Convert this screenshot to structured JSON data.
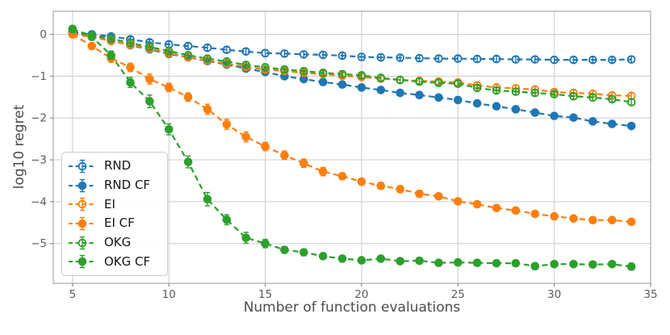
{
  "figure": {
    "background": "#ffffff",
    "grid_color": "#cccccc",
    "spine_color": "#ababab",
    "tick_color": "#8c8c8c",
    "tick_label_color": "#5c5c5c",
    "axis_label_color": "#4c4c4c",
    "legend_text_color": "#141414"
  },
  "chart_data": {
    "type": "line",
    "title": "",
    "xlabel": "Number of function evaluations",
    "ylabel": "log10 regret",
    "xlim": [
      4.0,
      35.0
    ],
    "ylim": [
      -5.95,
      0.55
    ],
    "xticks": [
      5,
      10,
      15,
      20,
      25,
      30,
      35
    ],
    "xtick_labels": [
      "5",
      "10",
      "15",
      "20",
      "25",
      "30",
      "35"
    ],
    "yticks": [
      0,
      -1,
      -2,
      -3,
      -4,
      -5
    ],
    "ytick_labels": [
      "0",
      "−1",
      "−2",
      "−3",
      "−4",
      "−5"
    ],
    "grid": true,
    "legend_position": "inside lower-left",
    "line_style": "dashed",
    "marker": "circle with error bars",
    "x": [
      5,
      6,
      7,
      8,
      9,
      10,
      11,
      12,
      13,
      14,
      15,
      16,
      17,
      18,
      19,
      20,
      21,
      22,
      23,
      24,
      25,
      26,
      27,
      28,
      29,
      30,
      31,
      32,
      33,
      34
    ],
    "series": [
      {
        "name": "RND",
        "color": "#1f77b4",
        "marker_fill": "open",
        "values": [
          0.05,
          0.0,
          -0.05,
          -0.12,
          -0.19,
          -0.24,
          -0.28,
          -0.32,
          -0.37,
          -0.41,
          -0.45,
          -0.46,
          -0.48,
          -0.49,
          -0.51,
          -0.54,
          -0.55,
          -0.56,
          -0.57,
          -0.58,
          -0.58,
          -0.59,
          -0.59,
          -0.6,
          -0.6,
          -0.61,
          -0.61,
          -0.61,
          -0.61,
          -0.6
        ],
        "yerr": [
          0.06,
          0.06,
          0.06,
          0.06,
          0.06,
          0.07,
          0.07,
          0.07,
          0.07,
          0.07,
          0.08,
          0.07,
          0.07,
          0.07,
          0.07,
          0.08,
          0.07,
          0.07,
          0.07,
          0.07,
          0.07,
          0.07,
          0.07,
          0.07,
          0.07,
          0.07,
          0.07,
          0.07,
          0.07,
          0.07
        ]
      },
      {
        "name": "RND CF",
        "color": "#1f77b4",
        "marker_fill": "filled",
        "values": [
          0.05,
          -0.05,
          -0.15,
          -0.26,
          -0.36,
          -0.47,
          -0.55,
          -0.64,
          -0.72,
          -0.82,
          -0.9,
          -1.0,
          -1.07,
          -1.14,
          -1.2,
          -1.27,
          -1.33,
          -1.4,
          -1.45,
          -1.51,
          -1.57,
          -1.65,
          -1.72,
          -1.79,
          -1.87,
          -1.95,
          -1.99,
          -2.08,
          -2.14,
          -2.19
        ],
        "yerr": [
          0.05,
          0.05,
          0.05,
          0.05,
          0.05,
          0.05,
          0.05,
          0.05,
          0.05,
          0.05,
          0.05,
          0.05,
          0.05,
          0.05,
          0.05,
          0.05,
          0.05,
          0.05,
          0.05,
          0.05,
          0.05,
          0.05,
          0.05,
          0.05,
          0.05,
          0.05,
          0.05,
          0.05,
          0.05,
          0.05
        ]
      },
      {
        "name": "EI",
        "color": "#ff7f0e",
        "marker_fill": "open",
        "values": [
          0.0,
          -0.06,
          -0.16,
          -0.25,
          -0.34,
          -0.45,
          -0.55,
          -0.63,
          -0.7,
          -0.78,
          -0.84,
          -0.88,
          -0.92,
          -0.95,
          -0.99,
          -1.02,
          -1.06,
          -1.09,
          -1.11,
          -1.13,
          -1.15,
          -1.22,
          -1.27,
          -1.29,
          -1.32,
          -1.38,
          -1.4,
          -1.42,
          -1.46,
          -1.47
        ],
        "yerr": [
          0.06,
          0.07,
          0.07,
          0.07,
          0.07,
          0.07,
          0.07,
          0.07,
          0.07,
          0.07,
          0.08,
          0.07,
          0.07,
          0.07,
          0.07,
          0.07,
          0.07,
          0.07,
          0.07,
          0.07,
          0.07,
          0.07,
          0.07,
          0.07,
          0.07,
          0.07,
          0.07,
          0.07,
          0.07,
          0.07
        ]
      },
      {
        "name": "EI CF",
        "color": "#ff7f0e",
        "marker_fill": "filled",
        "values": [
          0.0,
          -0.28,
          -0.57,
          -0.79,
          -1.07,
          -1.27,
          -1.5,
          -1.79,
          -2.15,
          -2.45,
          -2.68,
          -2.89,
          -3.08,
          -3.28,
          -3.39,
          -3.52,
          -3.62,
          -3.7,
          -3.81,
          -3.87,
          -3.99,
          -4.06,
          -4.15,
          -4.21,
          -4.29,
          -4.35,
          -4.4,
          -4.44,
          -4.44,
          -4.48
        ],
        "yerr": [
          0.05,
          0.08,
          0.1,
          0.1,
          0.12,
          0.1,
          0.1,
          0.12,
          0.12,
          0.12,
          0.1,
          0.1,
          0.1,
          0.1,
          0.08,
          0.08,
          0.08,
          0.08,
          0.08,
          0.07,
          0.07,
          0.07,
          0.07,
          0.07,
          0.06,
          0.06,
          0.06,
          0.06,
          0.06,
          0.06
        ]
      },
      {
        "name": "OKG",
        "color": "#2ca02c",
        "marker_fill": "open",
        "values": [
          0.12,
          -0.03,
          -0.1,
          -0.21,
          -0.3,
          -0.4,
          -0.5,
          -0.58,
          -0.65,
          -0.73,
          -0.79,
          -0.84,
          -0.88,
          -0.92,
          -0.95,
          -0.98,
          -1.04,
          -1.09,
          -1.13,
          -1.16,
          -1.18,
          -1.28,
          -1.34,
          -1.37,
          -1.4,
          -1.43,
          -1.48,
          -1.51,
          -1.55,
          -1.62
        ],
        "yerr": [
          0.07,
          0.07,
          0.07,
          0.07,
          0.07,
          0.07,
          0.07,
          0.07,
          0.07,
          0.07,
          0.08,
          0.07,
          0.07,
          0.07,
          0.07,
          0.07,
          0.07,
          0.07,
          0.07,
          0.07,
          0.07,
          0.07,
          0.07,
          0.07,
          0.07,
          0.07,
          0.07,
          0.07,
          0.07,
          0.07
        ]
      },
      {
        "name": "OKG CF",
        "color": "#2ca02c",
        "marker_fill": "filled",
        "values": [
          0.13,
          -0.06,
          -0.5,
          -1.15,
          -1.6,
          -2.27,
          -3.05,
          -3.94,
          -4.43,
          -4.86,
          -5.0,
          -5.15,
          -5.21,
          -5.3,
          -5.36,
          -5.4,
          -5.36,
          -5.42,
          -5.41,
          -5.46,
          -5.45,
          -5.46,
          -5.47,
          -5.47,
          -5.54,
          -5.49,
          -5.49,
          -5.5,
          -5.49,
          -5.55
        ],
        "yerr": [
          0.06,
          0.08,
          0.1,
          0.12,
          0.15,
          0.13,
          0.14,
          0.16,
          0.12,
          0.13,
          0.1,
          0.08,
          0.08,
          0.07,
          0.07,
          0.07,
          0.07,
          0.07,
          0.07,
          0.07,
          0.07,
          0.07,
          0.07,
          0.07,
          0.08,
          0.07,
          0.07,
          0.07,
          0.07,
          0.08
        ]
      }
    ]
  }
}
